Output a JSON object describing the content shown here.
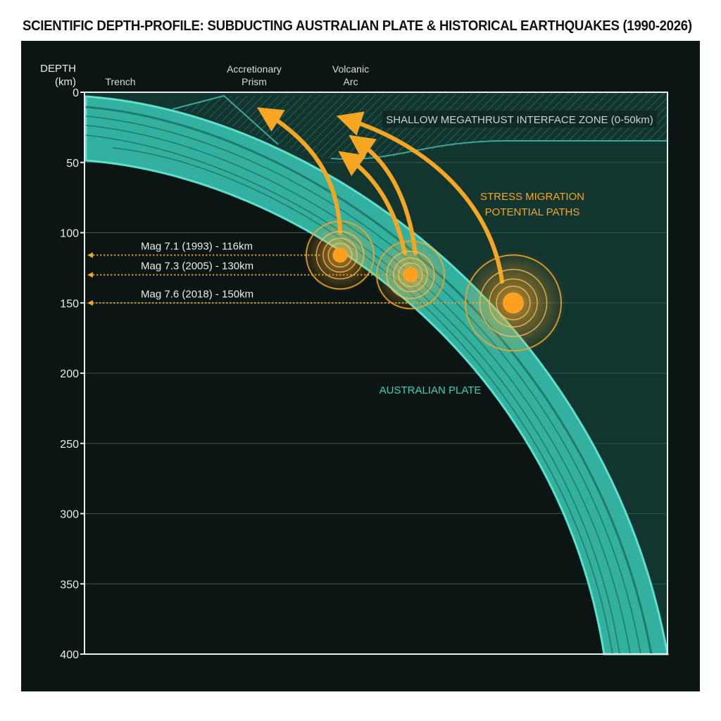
{
  "title": "SCIENTIFIC DEPTH-PROFILE: SUBDUCTING AUSTRALIAN PLATE & HISTORICAL EARTHQUAKES (1990-2026)",
  "chart_data": {
    "type": "diagram",
    "ylabel_line1": "DEPTH",
    "ylabel_line2": "(km)",
    "ylim": [
      0,
      400
    ],
    "yticks": [
      "0",
      "50",
      "100",
      "150",
      "200",
      "250",
      "300",
      "350",
      "400"
    ],
    "grid": true,
    "top_labels": {
      "trench": "Trench",
      "prism_line1": "Accretionary",
      "prism_line2": "Prism",
      "arc_line1": "Volcanic",
      "arc_line2": "Arc"
    },
    "zone_label": "SHALLOW MEGATHRUST INTERFACE ZONE (0-50km)",
    "stress_label_line1": "STRESS MIGRATION",
    "stress_label_line2": "POTENTIAL PATHS",
    "plate_label": "AUSTRALIAN PLATE",
    "events": [
      {
        "label": "Mag 7.1 (1993) - 116km",
        "magnitude": 7.1,
        "year": 1993,
        "depth": 116
      },
      {
        "label": "Mag 7.3 (2005) - 130km",
        "magnitude": 7.3,
        "year": 2005,
        "depth": 130
      },
      {
        "label": "Mag 7.6 (2018) - 150km",
        "magnitude": 7.6,
        "year": 2018,
        "depth": 150
      }
    ],
    "colors": {
      "plate": "#3bb8a8",
      "quake": "#f5a623",
      "background": "#0b1614",
      "wedge": "#123530"
    }
  }
}
